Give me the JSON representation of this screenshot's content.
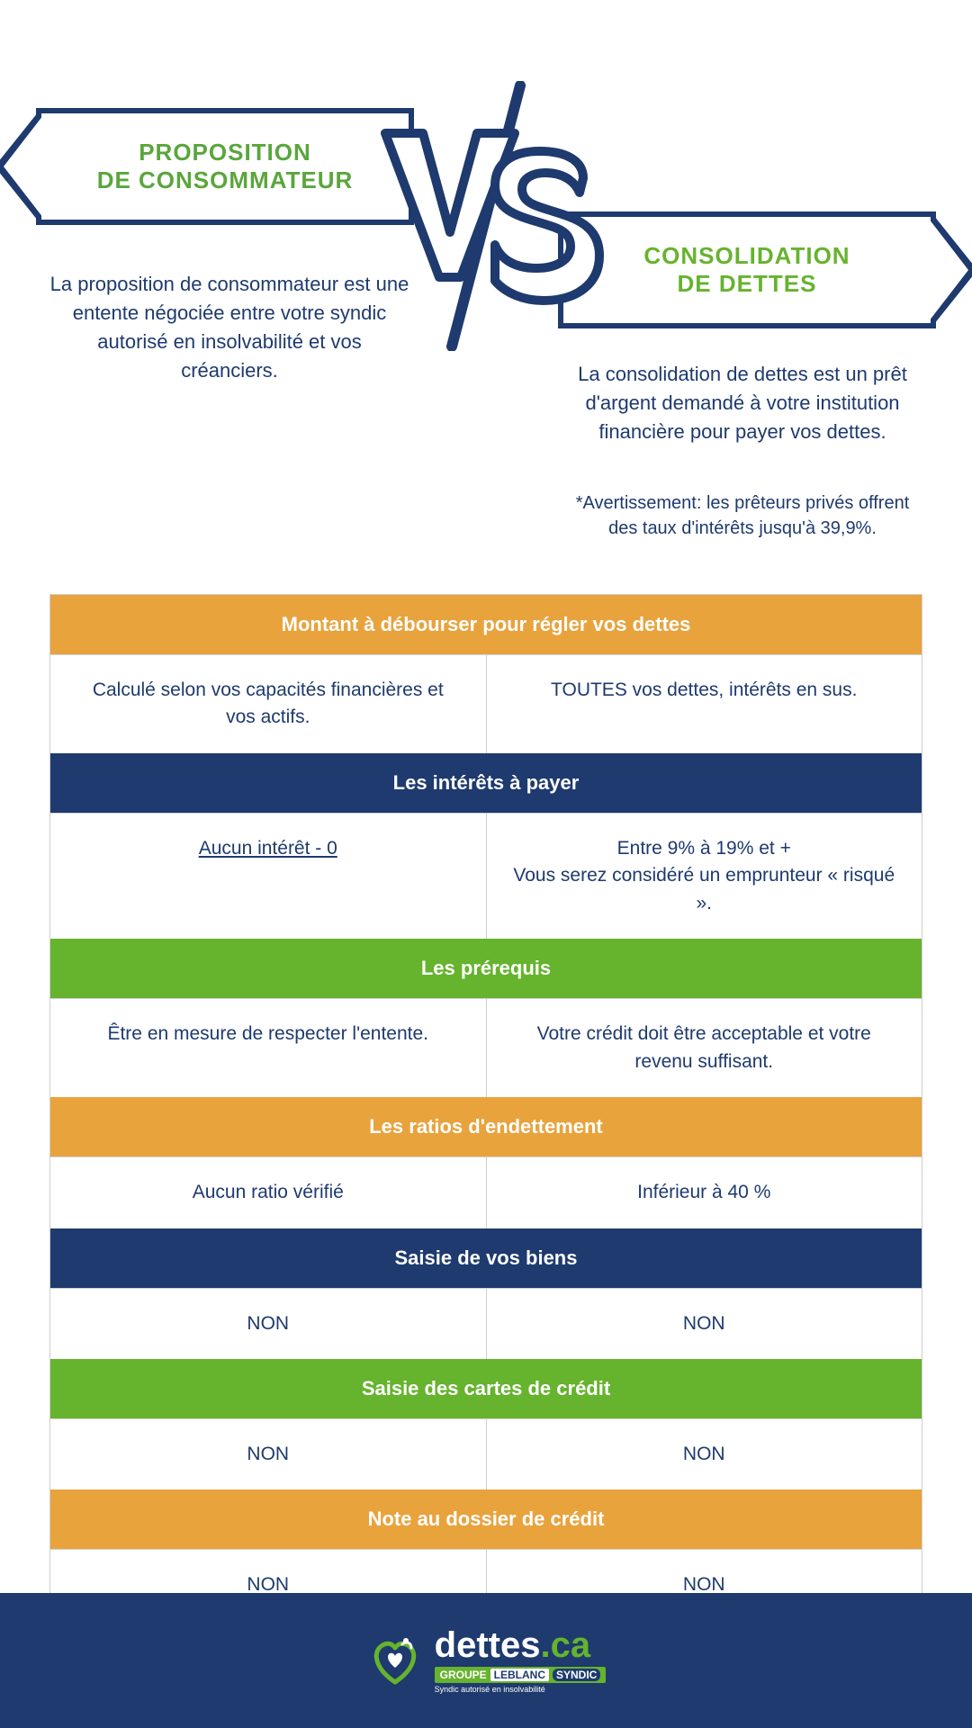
{
  "colors": {
    "navy": "#1e3a6e",
    "green": "#66b32e",
    "greenDark": "#5aa63c",
    "orange": "#e8a33d",
    "white": "#ffffff",
    "border": "#d0d0d0"
  },
  "header": {
    "left": {
      "line1": "PROPOSITION",
      "line2": "DE CONSOMMATEUR"
    },
    "right": {
      "line1": "CONSOLIDATION",
      "line2": "DE DETTES"
    },
    "vs": "VS",
    "descLeft": "La proposition de consommateur est une entente négociée entre votre syndic autorisé en insolvabilité et vos créanciers.",
    "descRight": "La consolidation de dettes est un prêt d'argent demandé à votre institution financière pour payer vos dettes.",
    "warning": "*Avertissement: les prêteurs privés offrent des taux d'intérêts jusqu'à 39,9%."
  },
  "sections": [
    {
      "title": "Montant à débourser pour régler vos dettes",
      "bg": "#e8a33d",
      "left": "Calculé selon vos capacités financières et vos actifs.",
      "right": "TOUTES vos dettes, intérêts en sus."
    },
    {
      "title": "Les intérêts à payer",
      "bg": "#1e3a6e",
      "left": "Aucun intérêt - 0",
      "leftUnderline": true,
      "right": "Entre 9% à 19% et +\nVous serez considéré un emprunteur « risqué »."
    },
    {
      "title": "Les prérequis",
      "bg": "#66b32e",
      "left": "Être en mesure de respecter l'entente.",
      "right": "Votre crédit doit être acceptable et votre revenu suffisant."
    },
    {
      "title": "Les ratios d'endettement",
      "bg": "#e8a33d",
      "left": "Aucun ratio vérifié",
      "right": "Inférieur à 40 %"
    },
    {
      "title": "Saisie de vos biens",
      "bg": "#1e3a6e",
      "left": "NON",
      "right": "NON"
    },
    {
      "title": "Saisie des cartes de crédit",
      "bg": "#66b32e",
      "left": "NON",
      "right": "NON"
    },
    {
      "title": "Note au dossier de crédit",
      "bg": "#e8a33d",
      "left": "NON",
      "right": "NON"
    }
  ],
  "footer": {
    "brandWhite": "dettes",
    "brandGreen": ".ca",
    "sub": {
      "groupe": "GROUPE",
      "name": "LEBLANC",
      "tag": "SYNDIC"
    },
    "tagline": "Syndic autorisé en insolvabilité"
  }
}
